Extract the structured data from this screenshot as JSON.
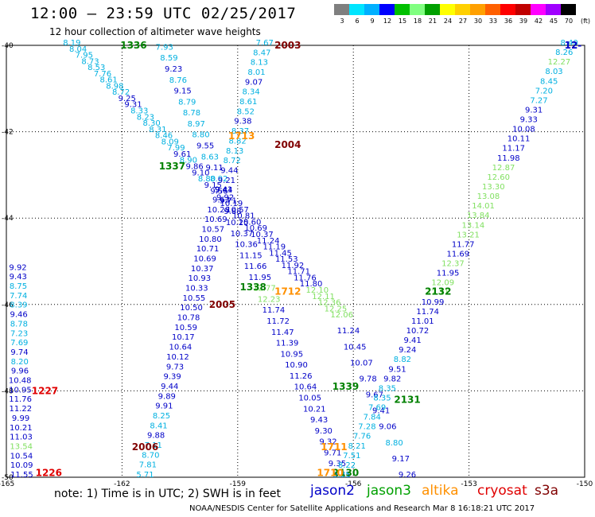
{
  "header": {
    "title": "12:00 – 23:59 UTC 02/25/2017",
    "subtitle": "12 hour collection of altimeter wave heights"
  },
  "legend": {
    "unit": "(ft)",
    "items": [
      {
        "label": "3",
        "color": "#7f7f7f"
      },
      {
        "label": "6",
        "color": "#00e5ff"
      },
      {
        "label": "9",
        "color": "#00b0ff"
      },
      {
        "label": "12",
        "color": "#0000ff"
      },
      {
        "label": "15",
        "color": "#00c000"
      },
      {
        "label": "18",
        "color": "#80ff80"
      },
      {
        "label": "21",
        "color": "#00a000"
      },
      {
        "label": "24",
        "color": "#ffff00"
      },
      {
        "label": "27",
        "color": "#ffd000"
      },
      {
        "label": "30",
        "color": "#ffa000"
      },
      {
        "label": "33",
        "color": "#ff6000"
      },
      {
        "label": "36",
        "color": "#ff0000"
      },
      {
        "label": "39",
        "color": "#c00000"
      },
      {
        "label": "42",
        "color": "#ff00ff"
      },
      {
        "label": "45",
        "color": "#a000ff"
      },
      {
        "label": "70",
        "color": "#000000"
      }
    ]
  },
  "axes": {
    "lat_labels": [
      "-40",
      "-42",
      "-44",
      "-46",
      "-48",
      "-50"
    ],
    "lon_labels": [
      "-165",
      "-162",
      "-159",
      "-156",
      "-153",
      "-150"
    ]
  },
  "colors": {
    "cyan": "#00b0e0",
    "blue": "#0000c8",
    "light_green": "#80e060",
    "orange": "#ff9000",
    "dark_red": "#800000",
    "red": "#e00000",
    "green": "#008000"
  },
  "map_data": {
    "pass_labels": [
      {
        "text": "1336",
        "lat": -40.0,
        "lon": -161.7,
        "color": "green"
      },
      {
        "text": "2003",
        "lat": -40.0,
        "lon": -157.7,
        "color": "dark_red"
      },
      {
        "text": "1713",
        "lat": -42.1,
        "lon": -158.9,
        "color": "orange"
      },
      {
        "text": "2004",
        "lat": -42.3,
        "lon": -157.7,
        "color": "dark_red"
      },
      {
        "text": "1337",
        "lat": -42.8,
        "lon": -160.7,
        "color": "green"
      },
      {
        "text": "1338",
        "lat": -45.6,
        "lon": -158.6,
        "color": "green"
      },
      {
        "text": "1712",
        "lat": -45.7,
        "lon": -157.7,
        "color": "orange"
      },
      {
        "text": "2005",
        "lat": -46.0,
        "lon": -159.4,
        "color": "dark_red"
      },
      {
        "text": "2132",
        "lat": -45.7,
        "lon": -153.8,
        "color": "green"
      },
      {
        "text": "1227",
        "lat": -48.0,
        "lon": -164.0,
        "color": "red"
      },
      {
        "text": "1339",
        "lat": -47.9,
        "lon": -156.2,
        "color": "green"
      },
      {
        "text": "2131",
        "lat": -48.2,
        "lon": -154.6,
        "color": "green"
      },
      {
        "text": "1711",
        "lat": -49.3,
        "lon": -156.5,
        "color": "orange"
      },
      {
        "text": "2006",
        "lat": -49.3,
        "lon": -161.4,
        "color": "dark_red"
      },
      {
        "text": "2130",
        "lat": -49.9,
        "lon": -156.2,
        "color": "green"
      },
      {
        "text": "1226",
        "lat": -49.9,
        "lon": -163.9,
        "color": "red"
      },
      {
        "text": "1710",
        "lat": -49.9,
        "lon": -156.6,
        "color": "orange"
      },
      {
        "text": "12-",
        "lat": -40.0,
        "lon": -150.3,
        "color": "blue"
      }
    ],
    "tracks": [
      {
        "color_scheme": "cyan-blue",
        "start": {
          "lat": -40.0,
          "lon": -163.3
        },
        "end": {
          "lat": -46.3,
          "lon": -156.3
        },
        "values": [
          "8.19",
          "8.04",
          "7.95",
          "8.73",
          "8.53",
          "7.76",
          "8.61",
          "8.98",
          "8.72",
          "9.25",
          "9.31",
          "8.33",
          "8.23",
          "8.30",
          "8.31",
          "8.46",
          "8.09",
          "7.99",
          "9.61",
          "8.90",
          "9.86",
          "9.10",
          "8.80",
          "9.15",
          "9.56",
          "9.92",
          "10.19",
          "10.57",
          "10.81",
          "10.60",
          "10.69",
          "10.37",
          "11.24",
          "11.19",
          "11.45",
          "11.53",
          "11.92",
          "11.71",
          "11.76",
          "11.80",
          "12.10",
          "12.11",
          "12.36",
          "12.25",
          "12.06",
          "11.24",
          "10.45",
          "10.07",
          "9.78",
          "9.67",
          "9.41",
          "9.06",
          "8.80",
          "9.17",
          "9.26"
        ],
        "end2": {
          "lat": -50.0,
          "lon": -154.6
        }
      },
      {
        "color_scheme": "cyan-blue",
        "start": {
          "lat": -40.1,
          "lon": -160.9
        },
        "end": {
          "lat": -50.0,
          "lon": -156.3
        },
        "values": [
          "7.93",
          "8.59",
          "9.23",
          "8.76",
          "9.15",
          "8.79",
          "8.78",
          "8.97",
          "8.80",
          "9.55",
          "8.63",
          "9.11",
          "8.92",
          "9.41",
          "9.71",
          "9.88",
          "10.25",
          "10.37",
          "10.36",
          "11.15",
          "11.66",
          "11.95",
          "12.77",
          "12.23",
          "11.74",
          "11.72",
          "11.47",
          "11.39",
          "10.95",
          "10.90",
          "11.26",
          "10.64",
          "10.05",
          "10.21",
          "9.43",
          "9.30",
          "9.32",
          "9.71",
          "9.35",
          "9.51"
        ]
      },
      {
        "color_scheme": "cyan-blue",
        "start": {
          "lat": -40.0,
          "lon": -158.3
        },
        "end": {
          "lat": -50.0,
          "lon": -161.4
        },
        "values": [
          "7.67",
          "8.47",
          "8.13",
          "8.01",
          "9.07",
          "8.34",
          "8.61",
          "8.52",
          "9.38",
          "8.37",
          "8.82",
          "8.13",
          "8.72",
          "9.44",
          "9.21",
          "9.44",
          "9.63",
          "10.28",
          "10.69",
          "10.57",
          "10.80",
          "10.71",
          "10.69",
          "10.37",
          "10.93",
          "10.33",
          "10.55",
          "10.50",
          "10.78",
          "10.59",
          "10.17",
          "10.64",
          "10.12",
          "9.73",
          "9.39",
          "9.44",
          "9.89",
          "9.91",
          "8.25",
          "8.41",
          "9.88",
          "7.11",
          "8.70",
          "7.81",
          "5.71"
        ]
      },
      {
        "color_scheme": "cyan-blue",
        "start": {
          "lat": -45.2,
          "lon": -164.7
        },
        "end": {
          "lat": -50.0,
          "lon": -164.6
        },
        "values": [
          "9.92",
          "9.43",
          "8.75",
          "7.74",
          "8.39",
          "9.46",
          "8.78",
          "7.23",
          "7.69",
          "9.74",
          "8.20",
          "9.96",
          "10.48",
          "10.95",
          "11.76",
          "11.22",
          "9.99",
          "10.21",
          "11.03",
          "13.54",
          "10.54",
          "10.09",
          "11.55"
        ]
      },
      {
        "color_scheme": "green-blue",
        "start": {
          "lat": -40.0,
          "lon": -150.4
        },
        "end": {
          "lat": -50.0,
          "lon": -156.3
        },
        "values": [
          "8.40",
          "8.26",
          "12.27",
          "8.03",
          "8.45",
          "7.20",
          "7.27",
          "9.31",
          "9.33",
          "10.08",
          "10.11",
          "11.17",
          "11.98",
          "12.87",
          "12.60",
          "13.30",
          "13.08",
          "14.01",
          "13.84",
          "13.14",
          "13.21",
          "11.77",
          "11.69",
          "12.37",
          "11.95",
          "12.09",
          "12.11",
          "10.99",
          "11.74",
          "11.01",
          "10.72",
          "9.41",
          "9.24",
          "8.82",
          "9.51",
          "9.82",
          "8.35",
          "8.35",
          "7.69",
          "7.84",
          "7.28",
          "7.76",
          "8.21",
          "7.51",
          "8.22",
          "8.35"
        ]
      }
    ]
  },
  "footer": {
    "note": "note: 1) Time is in UTC; 2) SWH is in feet",
    "satellites": [
      {
        "name": "jason2",
        "color": "#0000c8"
      },
      {
        "name": "jason3",
        "color": "#00a000"
      },
      {
        "name": "altika",
        "color": "#ff9000"
      },
      {
        "name": "cryosat",
        "color": "#e00000"
      },
      {
        "name": "s3a",
        "color": "#800000"
      }
    ],
    "credit": "NOAA/NESDIS Center for Satellite Applications and Research   Mar  8 16:18:21 UTC 2017"
  }
}
